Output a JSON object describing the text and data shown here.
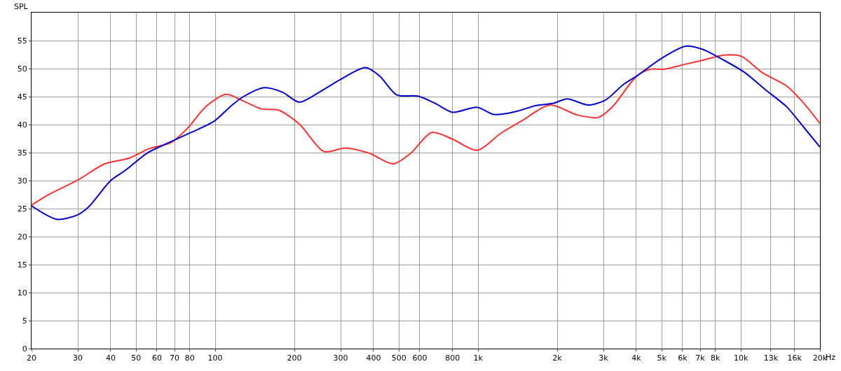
{
  "chart_data": {
    "type": "line",
    "ylabel": "SPL",
    "log": "x",
    "xlim": [
      20,
      20000
    ],
    "ylim": [
      0,
      60
    ],
    "xticks": [
      20,
      30,
      40,
      50,
      60,
      70,
      80,
      100,
      200,
      300,
      400,
      500,
      600,
      800,
      {
        "value": 1000,
        "label": "1k"
      },
      {
        "value": 2000,
        "label": "2k"
      },
      {
        "value": 3000,
        "label": "3k"
      },
      {
        "value": 4000,
        "label": "4k"
      },
      {
        "value": 5000,
        "label": "5k"
      },
      {
        "value": 6000,
        "label": "6k"
      },
      {
        "value": 7000,
        "label": "7k"
      },
      {
        "value": 8000,
        "label": "8k"
      },
      {
        "value": 10000,
        "label": "10k"
      },
      {
        "value": 13000,
        "label": "13k"
      },
      {
        "value": 16000,
        "label": "16k"
      },
      {
        "value": 20000,
        "label": "20k"
      }
    ],
    "xlabel": "Hz",
    "yticks": [
      0,
      5,
      10,
      15,
      20,
      25,
      30,
      35,
      40,
      45,
      50,
      55
    ],
    "grid": true,
    "marker": "none",
    "line_style": "solid",
    "series": [
      {
        "color": "#ff3030",
        "x": [
          20,
          23,
          30,
          38,
          47,
          56,
          68,
          79,
          92,
          110,
          128,
          150,
          174,
          209,
          259,
          311,
          385,
          476,
          555,
          666,
          800,
          990,
          1225,
          1470,
          1877,
          2395,
          2875,
          3249,
          4024,
          4544,
          5134,
          6165,
          7178,
          8617,
          10040,
          12050,
          14920,
          17370,
          20000
        ],
        "values": [
          25.6,
          27.4,
          30.1,
          33.0,
          34.0,
          35.7,
          36.8,
          39.5,
          43.2,
          45.4,
          44.2,
          42.8,
          42.6,
          40.1,
          35.2,
          35.8,
          34.9,
          33.0,
          34.9,
          38.6,
          37.4,
          35.4,
          38.5,
          40.7,
          43.5,
          41.7,
          41.3,
          43.2,
          48.7,
          49.9,
          49.9,
          50.8,
          51.5,
          52.4,
          52.2,
          49.3,
          46.9,
          43.8,
          40.2
        ]
      },
      {
        "color": "#0000cc",
        "x": [
          20,
          25,
          30,
          33,
          40,
          46,
          55,
          66,
          81,
          99,
          114,
          128,
          154,
          180,
          209,
          251,
          301,
          373,
          422,
          491,
          590,
          687,
          800,
          990,
          1153,
          1384,
          1662,
          1935,
          2186,
          2625,
          3057,
          3561,
          4024,
          4980,
          6165,
          7178,
          8617,
          10349,
          12425,
          14920,
          17370,
          20000
        ],
        "values": [
          25.5,
          23.1,
          23.9,
          25.3,
          30.0,
          32.0,
          34.9,
          36.7,
          38.6,
          40.6,
          43.2,
          45.0,
          46.6,
          45.8,
          44.0,
          45.9,
          48.1,
          50.2,
          48.7,
          45.3,
          45.1,
          43.8,
          42.2,
          43.1,
          41.8,
          42.3,
          43.4,
          43.8,
          44.6,
          43.5,
          44.4,
          47.1,
          48.7,
          51.8,
          54.0,
          53.4,
          51.5,
          49.3,
          46.2,
          43.2,
          39.5,
          36.0
        ]
      }
    ]
  }
}
